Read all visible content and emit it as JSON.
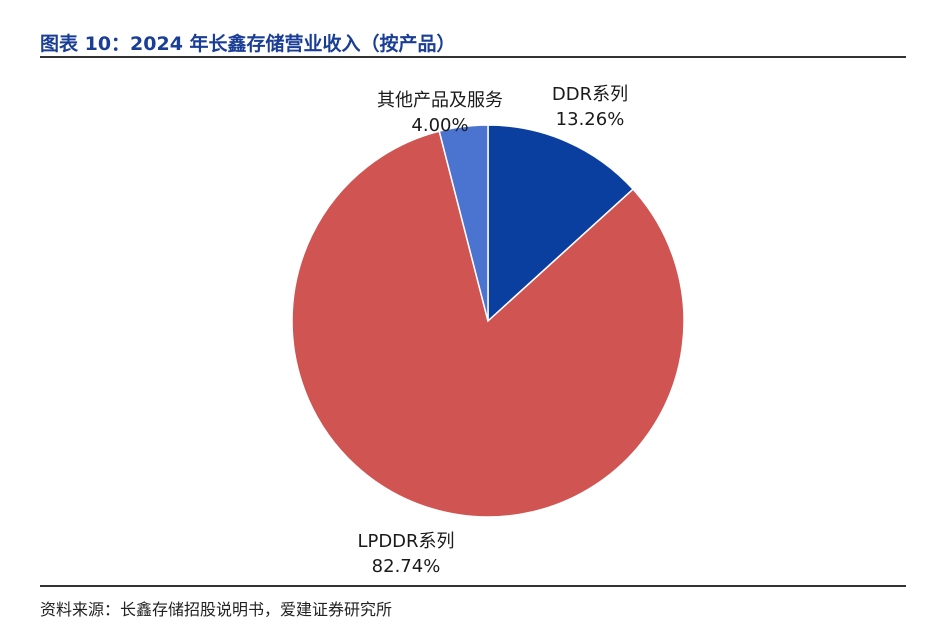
{
  "header": {
    "title": "图表 10：2024 年长鑫存储营业收入（按产品）"
  },
  "footer": {
    "source": "资料来源：长鑫存储招股说明书，爱建证券研究所"
  },
  "chart_data": {
    "type": "pie",
    "title": "图表 10：2024 年长鑫存储营业收入（按产品）",
    "slices": [
      {
        "name": "DDR系列",
        "value": 13.26,
        "label": "13.26%",
        "color": "#0a3fa0"
      },
      {
        "name": "LPDDR系列",
        "value": 82.74,
        "label": "82.74%",
        "color": "#d05452"
      },
      {
        "name": "其他产品及服务",
        "value": 4.0,
        "label": "4.00%",
        "color": "#4a74d0"
      }
    ],
    "start": "12 o'clock",
    "direction": "clockwise",
    "legend": "none"
  }
}
